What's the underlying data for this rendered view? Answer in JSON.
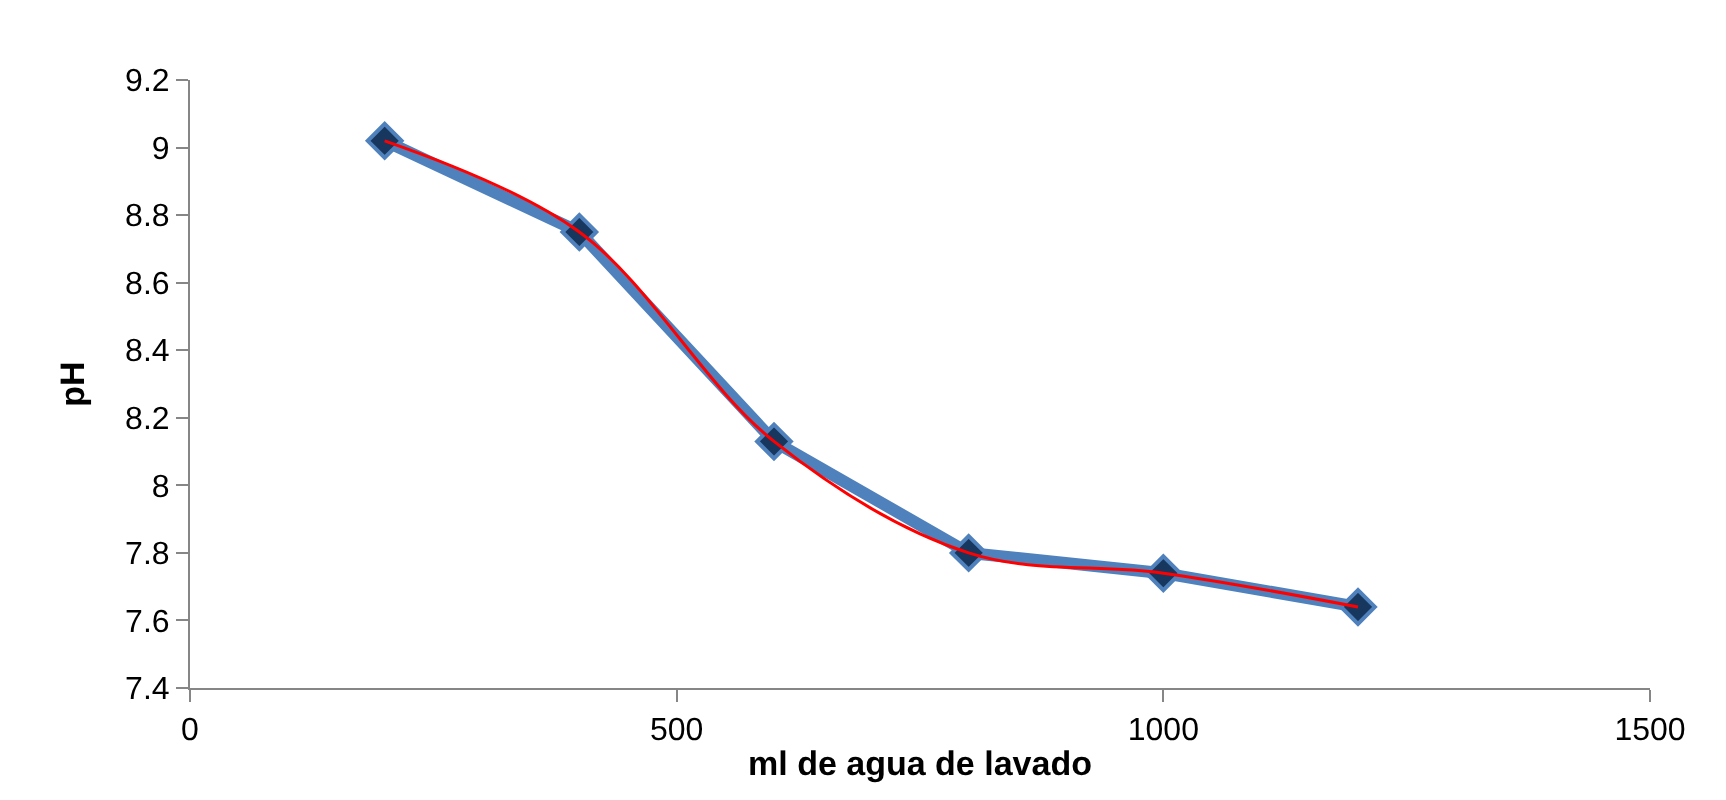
{
  "chart_data": {
    "type": "line",
    "xlabel": "ml de agua de lavado",
    "ylabel": "pH",
    "xlim": [
      0,
      1500
    ],
    "xticks": [
      0,
      500,
      1000,
      1500
    ],
    "ylim": [
      7.4,
      9.2
    ],
    "yticks": [
      {
        "value": 7.4,
        "label": "7.4"
      },
      {
        "value": 7.6,
        "label": "7.6"
      },
      {
        "value": 7.8,
        "label": "7.8"
      },
      8,
      {
        "value": 8.2,
        "label": "8.2"
      },
      {
        "value": 8.4,
        "label": "8.4"
      },
      {
        "value": 8.6,
        "label": "8.6"
      },
      {
        "value": 8.8,
        "label": "8.8"
      },
      9,
      {
        "value": 9.2,
        "label": "9.2"
      }
    ],
    "series": [
      {
        "color": "#4f81bd",
        "marker": "diamond",
        "line_style": "solid",
        "x": [
          200,
          400,
          600,
          800,
          1000,
          1200
        ],
        "values": [
          9.02,
          8.75,
          8.13,
          7.8,
          7.74,
          7.64
        ]
      },
      {
        "color": "#ff0000",
        "marker": "none",
        "line_style": "solid",
        "x": [
          200,
          400,
          600,
          800,
          1000,
          1200
        ],
        "values": [
          9.02,
          8.75,
          8.13,
          7.8,
          7.74,
          7.64
        ]
      }
    ]
  }
}
